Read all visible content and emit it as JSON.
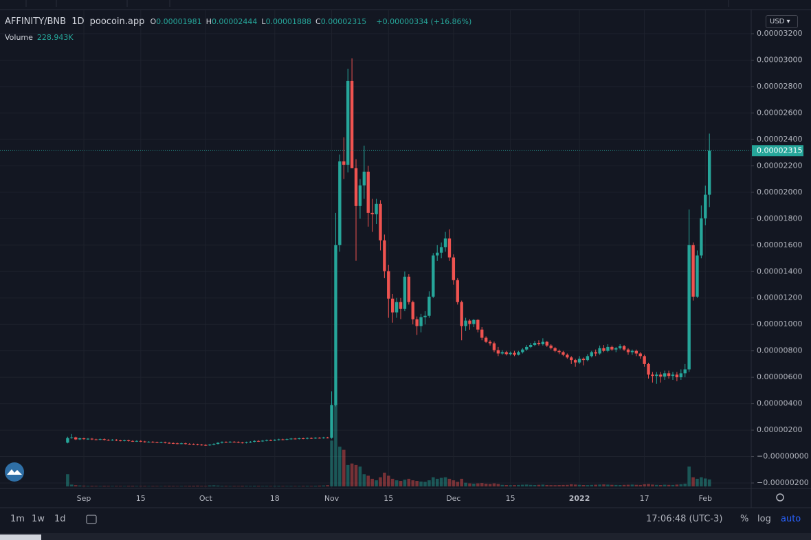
{
  "ui": {
    "symbol": "AFFINITY/BNB",
    "interval": "1D",
    "source": "poocoin.app",
    "ohlc": [
      {
        "key": "O",
        "value": "0.00001981"
      },
      {
        "key": "H",
        "value": "0.00002444"
      },
      {
        "key": "L",
        "value": "0.00001888"
      },
      {
        "key": "C",
        "value": "0.00002315"
      }
    ],
    "change": "+0.00000334 (+16.86%)",
    "volume_title": "Volume",
    "volume_value": "228.943K",
    "currency": "USD",
    "ranges": [
      "1m",
      "1w",
      "1d"
    ],
    "clock": "17:06:48 (UTC-3)",
    "scale_buttons": [
      "%",
      "log",
      "auto"
    ]
  },
  "chart_data": {
    "type": "candlestick",
    "up_color": "#26a69a",
    "down_color": "#ef5350",
    "grid": true,
    "last_price_label": "0.00002315",
    "ylim": [
      -2.26e-06,
      3.351e-05
    ],
    "yticks": [
      {
        "value": 3.2e-05,
        "label": "0.00003200"
      },
      {
        "value": 3e-05,
        "label": "0.00003000"
      },
      {
        "value": 2.8e-05,
        "label": "0.00002800"
      },
      {
        "value": 2.6e-05,
        "label": "0.00002600"
      },
      {
        "value": 2.4e-05,
        "label": "0.00002400"
      },
      {
        "value": 2.2e-05,
        "label": "0.00002200"
      },
      {
        "value": 2e-05,
        "label": "0.00002000"
      },
      {
        "value": 1.8e-05,
        "label": "0.00001800"
      },
      {
        "value": 1.6e-05,
        "label": "0.00001600"
      },
      {
        "value": 1.4e-05,
        "label": "0.00001400"
      },
      {
        "value": 1.2e-05,
        "label": "0.00001200"
      },
      {
        "value": 1e-05,
        "label": "0.00001000"
      },
      {
        "value": 8e-06,
        "label": "0.00000800"
      },
      {
        "value": 6e-06,
        "label": "0.00000600"
      },
      {
        "value": 4e-06,
        "label": "0.00000400"
      },
      {
        "value": 2e-06,
        "label": "0.00000200"
      },
      {
        "value": 0,
        "label": "−0.00000000"
      },
      {
        "value": -2e-06,
        "label": "−0.00000200"
      }
    ],
    "xticks": [
      {
        "value": 4,
        "label": "Sep"
      },
      {
        "value": 18,
        "label": "15"
      },
      {
        "value": 34,
        "label": "Oct"
      },
      {
        "value": 51,
        "label": "18"
      },
      {
        "value": 65,
        "label": "Nov"
      },
      {
        "value": 79,
        "label": "15"
      },
      {
        "value": 95,
        "label": "Dec"
      },
      {
        "value": 109,
        "label": "15"
      },
      {
        "value": 126,
        "label": "2022"
      },
      {
        "value": 142,
        "label": "17"
      },
      {
        "value": 157,
        "label": "Feb"
      }
    ],
    "open": [
      1.05e-06,
      1.4e-06,
      1.45e-06,
      1.3e-06,
      1.38e-06,
      1.32e-06,
      1.35e-06,
      1.3e-06,
      1.28e-06,
      1.32e-06,
      1.26e-06,
      1.24e-06,
      1.27e-06,
      1.22e-06,
      1.2e-06,
      1.23e-06,
      1.18e-06,
      1.16e-06,
      1.18e-06,
      1.14e-06,
      1.1e-06,
      1.12e-06,
      1.08e-06,
      1.06e-06,
      1.08e-06,
      1.04e-06,
      1.02e-06,
      1e-06,
      9.8e-07,
      1e-06,
      9.6e-07,
      9.4e-07,
      9.2e-07,
      9e-07,
      8.8e-07,
      8.6e-07,
      9e-07,
      9.6e-07,
      1.04e-06,
      1.1e-06,
      1.08e-06,
      1.12e-06,
      1.1e-06,
      1.06e-06,
      1.04e-06,
      1.08e-06,
      1.12e-06,
      1.18e-06,
      1.16e-06,
      1.2e-06,
      1.24e-06,
      1.22e-06,
      1.26e-06,
      1.3e-06,
      1.28e-06,
      1.32e-06,
      1.36e-06,
      1.34e-06,
      1.38e-06,
      1.36e-06,
      1.4e-06,
      1.38e-06,
      1.42e-06,
      1.4e-06,
      1.44e-06,
      1.42e-06,
      3.9e-06,
      1.6e-05,
      2.234e-05,
      2.208e-05,
      2.842e-05,
      2.182e-05,
      1.896e-05,
      2.052e-05,
      2.156e-05,
      1.844e-05,
      1.834e-05,
      1.912e-05,
      1.636e-05,
      1.403e-05,
      1.195e-05,
      1.091e-05,
      1.169e-05,
      1.117e-05,
      1.361e-05,
      1.169e-05,
      1.039e-05,
      9.87e-06,
      1.055e-05,
      1.065e-05,
      1.21e-05,
      1.522e-05,
      1.543e-05,
      1.584e-05,
      1.65e-05,
      1.507e-05,
      1.335e-05,
      1.169e-05,
      9.87e-06,
      1.029e-05,
      1.003e-05,
      1.034e-05,
      9.61e-06,
      8.99e-06,
      8.68e-06,
      8.57e-06,
      8.05e-06,
      7.8e-06,
      7.9e-06,
      7.75e-06,
      7.85e-06,
      7.7e-06,
      7.9e-06,
      8.1e-06,
      8.3e-06,
      8.45e-06,
      8.6e-06,
      8.5e-06,
      8.68e-06,
      8.4e-06,
      8.2e-06,
      8e-06,
      7.9e-06,
      7.7e-06,
      7.5e-06,
      7.3e-06,
      7.12e-06,
      7.4e-06,
      7.3e-06,
      7.6e-06,
      7.9e-06,
      7.8e-06,
      8.2e-06,
      8e-06,
      8.3e-06,
      8.1e-06,
      8.2e-06,
      8.35e-06,
      8.1e-06,
      7.9e-06,
      8e-06,
      7.8e-06,
      7.6e-06,
      7e-06,
      6.2e-06,
      6.1e-06,
      6.2e-06,
      6.05e-06,
      6.3e-06,
      6.1e-06,
      6.2e-06,
      6e-06,
      6.3e-06,
      6.6e-06,
      1.6e-05,
      1.21e-05,
      1.522e-05,
      1.803e-05,
      1.981e-05
    ],
    "high": [
      1.5e-06,
      1.7e-06,
      1.5e-06,
      1.43e-06,
      1.43e-06,
      1.4e-06,
      1.4e-06,
      1.35e-06,
      1.37e-06,
      1.37e-06,
      1.31e-06,
      1.32e-06,
      1.32e-06,
      1.27e-06,
      1.28e-06,
      1.28e-06,
      1.23e-06,
      1.23e-06,
      1.23e-06,
      1.19e-06,
      1.17e-06,
      1.17e-06,
      1.13e-06,
      1.13e-06,
      1.13e-06,
      1.09e-06,
      1.07e-06,
      1.05e-06,
      1.05e-06,
      1.05e-06,
      1.01e-06,
      9.9e-07,
      9.7e-07,
      9.5e-07,
      9.3e-07,
      9.5e-07,
      1.01e-06,
      1.09e-06,
      1.15e-06,
      1.15e-06,
      1.17e-06,
      1.17e-06,
      1.15e-06,
      1.11e-06,
      1.13e-06,
      1.17e-06,
      1.23e-06,
      1.23e-06,
      1.25e-06,
      1.29e-06,
      1.29e-06,
      1.31e-06,
      1.35e-06,
      1.35e-06,
      1.37e-06,
      1.41e-06,
      1.41e-06,
      1.43e-06,
      1.43e-06,
      1.45e-06,
      1.45e-06,
      1.47e-06,
      1.47e-06,
      1.49e-06,
      1.49e-06,
      4.94e-06,
      1.844e-05,
      2.286e-05,
      2.416e-05,
      2.935e-05,
      3.013e-05,
      2.25e-05,
      2.1e-05,
      2.353e-05,
      2.2e-05,
      1.95e-05,
      1.95e-05,
      1.94e-05,
      1.68e-05,
      1.45e-05,
      1.23e-05,
      1.2e-05,
      1.2e-05,
      1.4e-05,
      1.38e-05,
      1.18e-05,
      1.06e-05,
      1.08e-05,
      1.1e-05,
      1.25e-05,
      1.54e-05,
      1.6e-05,
      1.62e-05,
      1.7e-05,
      1.72e-05,
      1.53e-05,
      1.35e-05,
      1.18e-05,
      1.05e-05,
      1.04e-05,
      1.04e-05,
      1.04e-05,
      9.8e-06,
      9.1e-06,
      8.8e-06,
      8.7e-06,
      8.3e-06,
      8.05e-06,
      8e-06,
      7.95e-06,
      8e-06,
      8e-06,
      8.2e-06,
      8.45e-06,
      8.6e-06,
      8.75e-06,
      8.8e-06,
      8.95e-06,
      8.75e-06,
      8.5e-06,
      8.3e-06,
      8.1e-06,
      8e-06,
      7.8e-06,
      7.6e-06,
      7.4e-06,
      7.6e-06,
      7.5e-06,
      7.75e-06,
      8e-06,
      8.1e-06,
      8.4e-06,
      8.45e-06,
      8.5e-06,
      8.4e-06,
      8.3e-06,
      8.5e-06,
      8.45e-06,
      8.2e-06,
      8.1e-06,
      8.1e-06,
      7.9e-06,
      7.7e-06,
      7.1e-06,
      6.4e-06,
      6.4e-06,
      6.4e-06,
      6.5e-06,
      6.5e-06,
      6.4e-06,
      6.4e-06,
      6.6e-06,
      7e-06,
      1.87e-05,
      1.62e-05,
      1.56e-05,
      1.9e-05,
      2.05e-05,
      2.444e-05
    ],
    "low": [
      1e-06,
      1.35e-06,
      1.25e-06,
      1.25e-06,
      1.27e-06,
      1.27e-06,
      1.25e-06,
      1.23e-06,
      1.23e-06,
      1.21e-06,
      1.19e-06,
      1.19e-06,
      1.17e-06,
      1.15e-06,
      1.15e-06,
      1.13e-06,
      1.11e-06,
      1.11e-06,
      1.09e-06,
      1.05e-06,
      1.05e-06,
      1.03e-06,
      1.01e-06,
      1.01e-06,
      9.9e-07,
      9.7e-07,
      9.5e-07,
      9.3e-07,
      9.3e-07,
      9.1e-07,
      8.9e-07,
      8.7e-07,
      8.5e-07,
      8.3e-07,
      8.1e-07,
      8.1e-07,
      8.5e-07,
      9.1e-07,
      9.9e-07,
      1.03e-06,
      1.03e-06,
      1.05e-06,
      1.01e-06,
      9.9e-07,
      9.9e-07,
      1.03e-06,
      1.07e-06,
      1.11e-06,
      1.11e-06,
      1.15e-06,
      1.17e-06,
      1.17e-06,
      1.21e-06,
      1.23e-06,
      1.23e-06,
      1.27e-06,
      1.29e-06,
      1.29e-06,
      1.31e-06,
      1.31e-06,
      1.33e-06,
      1.33e-06,
      1.35e-06,
      1.35e-06,
      1.37e-06,
      1.35e-06,
      3.8e-06,
      1.55e-05,
      2.1e-05,
      2.15e-05,
      2.182e-05,
      1.481e-05,
      1.8e-05,
      1.95e-05,
      1.74e-05,
      1.7e-05,
      1.76e-05,
      1.56e-05,
      1.35e-05,
      1.05e-05,
      1.013e-05,
      1.05e-05,
      1.04e-05,
      1.1e-05,
      1.15e-05,
      1e-05,
      9.2e-06,
      9.4e-06,
      1e-05,
      1.05e-05,
      1.2e-05,
      1.48e-05,
      1.5e-05,
      1.55e-05,
      1.48e-05,
      1.3e-05,
      1.15e-05,
      8.8e-06,
      9.5e-06,
      9.6e-06,
      9.8e-06,
      9.4e-06,
      8.8e-06,
      8.6e-06,
      8.4e-06,
      7.9e-06,
      7.6e-06,
      7.7e-06,
      7.65e-06,
      7.65e-06,
      7.6e-06,
      7.65e-06,
      7.8e-06,
      8e-06,
      8.2e-06,
      8.35e-06,
      8.4e-06,
      8.4e-06,
      8.3e-06,
      8.1e-06,
      7.9e-06,
      7.75e-06,
      7.6e-06,
      7.4e-06,
      7e-06,
      6.8e-06,
      7e-06,
      6.9e-06,
      7.2e-06,
      7.5e-06,
      7.6e-06,
      7.7e-06,
      7.9e-06,
      7.9e-06,
      8e-06,
      7.9e-06,
      8.1e-06,
      8e-06,
      7.7e-06,
      7.7e-06,
      7.6e-06,
      7.4e-06,
      6.8e-06,
      5.9e-06,
      5.6e-06,
      5.5e-06,
      5.6e-06,
      5.8e-06,
      5.9e-06,
      5.8e-06,
      5.7e-06,
      5.8e-06,
      6e-06,
      6.4e-06,
      1.18e-05,
      1.2e-05,
      1.5e-05,
      1.75e-05,
      1.888e-05
    ],
    "close": [
      1.4e-06,
      1.45e-06,
      1.3e-06,
      1.38e-06,
      1.32e-06,
      1.35e-06,
      1.3e-06,
      1.28e-06,
      1.32e-06,
      1.26e-06,
      1.24e-06,
      1.27e-06,
      1.22e-06,
      1.2e-06,
      1.23e-06,
      1.18e-06,
      1.16e-06,
      1.18e-06,
      1.14e-06,
      1.1e-06,
      1.12e-06,
      1.08e-06,
      1.06e-06,
      1.08e-06,
      1.04e-06,
      1.02e-06,
      1e-06,
      9.8e-07,
      1e-06,
      9.6e-07,
      9.4e-07,
      9.2e-07,
      9e-07,
      8.8e-07,
      8.6e-07,
      9e-07,
      9.6e-07,
      1.04e-06,
      1.1e-06,
      1.08e-06,
      1.12e-06,
      1.1e-06,
      1.06e-06,
      1.04e-06,
      1.08e-06,
      1.12e-06,
      1.18e-06,
      1.16e-06,
      1.2e-06,
      1.24e-06,
      1.22e-06,
      1.26e-06,
      1.3e-06,
      1.28e-06,
      1.32e-06,
      1.36e-06,
      1.34e-06,
      1.38e-06,
      1.36e-06,
      1.4e-06,
      1.38e-06,
      1.42e-06,
      1.4e-06,
      1.44e-06,
      1.42e-06,
      3.9e-06,
      1.6e-05,
      2.234e-05,
      2.208e-05,
      2.842e-05,
      2.182e-05,
      1.896e-05,
      2.052e-05,
      2.156e-05,
      1.844e-05,
      1.834e-05,
      1.912e-05,
      1.636e-05,
      1.403e-05,
      1.195e-05,
      1.091e-05,
      1.169e-05,
      1.117e-05,
      1.361e-05,
      1.169e-05,
      1.039e-05,
      9.87e-06,
      1.055e-05,
      1.065e-05,
      1.21e-05,
      1.522e-05,
      1.543e-05,
      1.584e-05,
      1.65e-05,
      1.507e-05,
      1.335e-05,
      1.169e-05,
      9.87e-06,
      1.029e-05,
      1.003e-05,
      1.034e-05,
      9.61e-06,
      8.99e-06,
      8.68e-06,
      8.57e-06,
      8.05e-06,
      7.8e-06,
      7.9e-06,
      7.75e-06,
      7.85e-06,
      7.7e-06,
      7.9e-06,
      8.1e-06,
      8.3e-06,
      8.45e-06,
      8.6e-06,
      8.5e-06,
      8.68e-06,
      8.4e-06,
      8.2e-06,
      8e-06,
      7.9e-06,
      7.7e-06,
      7.5e-06,
      7.3e-06,
      7.12e-06,
      7.4e-06,
      7.3e-06,
      7.6e-06,
      7.9e-06,
      7.8e-06,
      8.2e-06,
      8e-06,
      8.3e-06,
      8.1e-06,
      8.2e-06,
      8.35e-06,
      8.1e-06,
      7.9e-06,
      8e-06,
      7.8e-06,
      7.6e-06,
      7e-06,
      6.2e-06,
      6.1e-06,
      6.2e-06,
      6.05e-06,
      6.3e-06,
      6.1e-06,
      6.2e-06,
      6e-06,
      6.3e-06,
      6.6e-06,
      1.6e-05,
      1.21e-05,
      1.522e-05,
      1.803e-05,
      1.981e-05,
      2.315e-05
    ],
    "volume": [
      400000,
      60000,
      40000,
      30000,
      25000,
      20000,
      22000,
      18000,
      15000,
      20000,
      17000,
      14000,
      16000,
      15000,
      13000,
      18000,
      20000,
      15000,
      14000,
      16000,
      12000,
      15000,
      13000,
      12000,
      14000,
      18000,
      16000,
      12000,
      15000,
      14000,
      20000,
      22000,
      25000,
      18000,
      16000,
      30000,
      35000,
      28000,
      20000,
      18000,
      15000,
      16000,
      14000,
      20000,
      18000,
      17000,
      22000,
      19000,
      15000,
      16000,
      14000,
      18000,
      20000,
      15000,
      14000,
      16000,
      13000,
      15000,
      18000,
      20000,
      17000,
      22000,
      25000,
      30000,
      40000,
      1500000,
      2700000,
      1300000,
      1200000,
      700000,
      750000,
      700000,
      650000,
      400000,
      350000,
      250000,
      200000,
      300000,
      450000,
      350000,
      250000,
      200000,
      180000,
      220000,
      250000,
      200000,
      180000,
      160000,
      150000,
      200000,
      300000,
      250000,
      280000,
      300000,
      250000,
      200000,
      150000,
      250000,
      120000,
      100000,
      90000,
      100000,
      110000,
      90000,
      80000,
      100000,
      80000,
      50000,
      45000,
      40000,
      42000,
      48000,
      55000,
      60000,
      50000,
      45000,
      52000,
      58000,
      46000,
      42000,
      40000,
      44000,
      48000,
      50000,
      70000,
      60000,
      52000,
      45000,
      42000,
      50000,
      55000,
      60000,
      65000,
      58000,
      52000,
      48000,
      45000,
      50000,
      55000,
      60000,
      52000,
      48000,
      70000,
      80000,
      60000,
      50000,
      45000,
      55000,
      50000,
      48000,
      60000,
      70000,
      90000,
      650000,
      300000,
      250000,
      300000,
      260000,
      228943
    ]
  }
}
